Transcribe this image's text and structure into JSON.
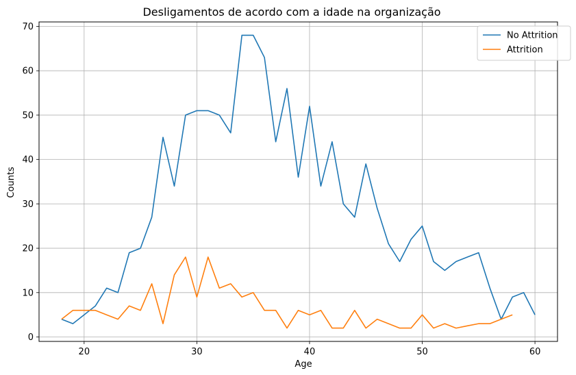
{
  "chart_data": {
    "type": "line",
    "title": "Desligamentos de acordo com a idade na organização",
    "xlabel": "Age",
    "ylabel": "Counts",
    "xlim": [
      16,
      62
    ],
    "ylim": [
      -1,
      71
    ],
    "xticks": [
      20,
      30,
      40,
      50,
      60
    ],
    "yticks": [
      0,
      10,
      20,
      30,
      40,
      50,
      60,
      70
    ],
    "grid": true,
    "legend_position": "top-right",
    "series": [
      {
        "name": "No Attrition",
        "color": "#1f77b4",
        "x": [
          18,
          19,
          20,
          21,
          22,
          23,
          24,
          25,
          26,
          27,
          28,
          29,
          30,
          31,
          32,
          33,
          34,
          35,
          36,
          37,
          38,
          39,
          40,
          41,
          42,
          43,
          44,
          45,
          46,
          47,
          48,
          49,
          50,
          51,
          52,
          53,
          54,
          55,
          56,
          57,
          58,
          59,
          60
        ],
        "values": [
          4,
          3,
          5,
          7,
          11,
          10,
          19,
          20,
          27,
          45,
          34,
          50,
          51,
          51,
          50,
          46,
          68,
          68,
          63,
          44,
          56,
          36,
          52,
          34,
          44,
          30,
          27,
          39,
          29,
          21,
          17,
          22,
          25,
          17,
          15,
          17,
          18,
          19,
          11,
          4,
          9,
          10,
          5
        ]
      },
      {
        "name": "Attrition",
        "color": "#ff7f0e",
        "x": [
          18,
          19,
          20,
          21,
          22,
          23,
          24,
          25,
          26,
          27,
          28,
          29,
          30,
          31,
          32,
          33,
          34,
          35,
          36,
          37,
          38,
          39,
          40,
          41,
          42,
          43,
          44,
          45,
          46,
          47,
          48,
          49,
          50,
          51,
          52,
          53,
          54,
          55,
          56,
          57,
          58
        ],
        "values": [
          4,
          6,
          6,
          6,
          5,
          4,
          7,
          6,
          12,
          3,
          14,
          18,
          9,
          18,
          11,
          12,
          9,
          10,
          6,
          6,
          2,
          6,
          5,
          6,
          2,
          2,
          6,
          2,
          4,
          3,
          2,
          2,
          5,
          2,
          3,
          2,
          2.5,
          3,
          3,
          4,
          5
        ]
      }
    ]
  }
}
